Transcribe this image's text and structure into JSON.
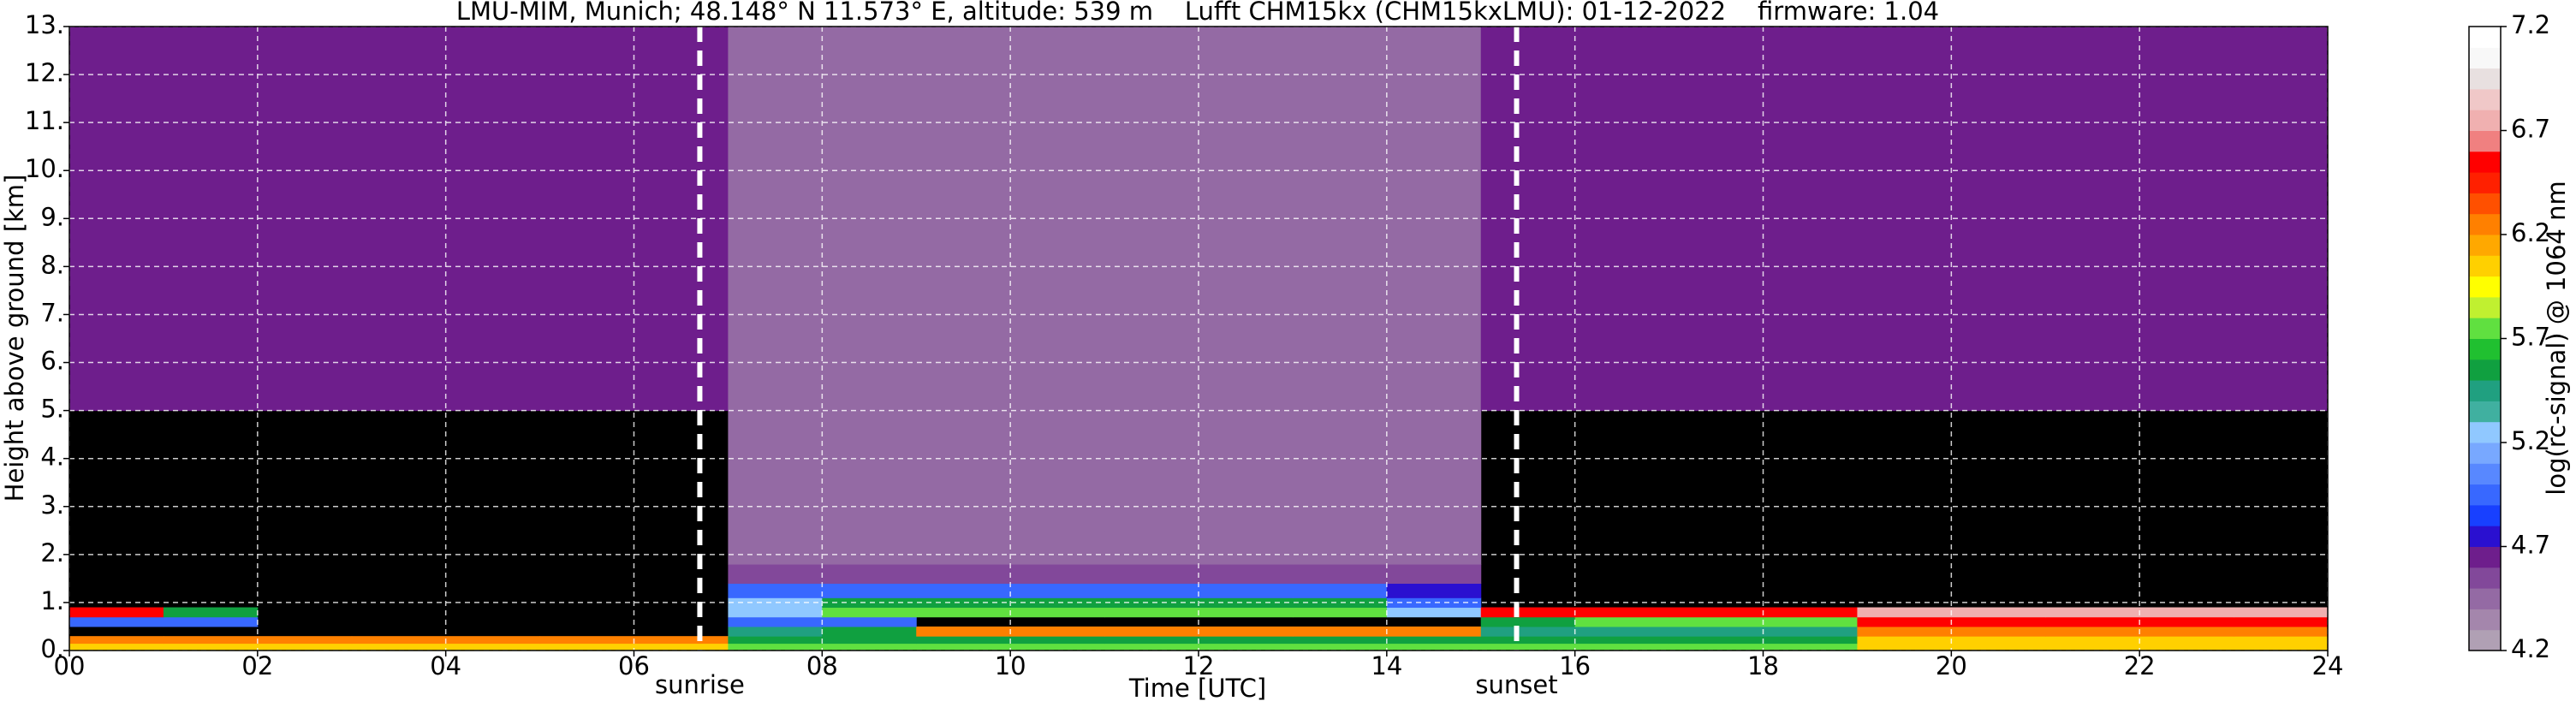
{
  "chart_data": {
    "type": "heatmap",
    "title": "LMU-MIM, Munich; 48.148° N 11.573° E, altitude: 539 m    Lufft CHM15kx (CHM15kxLMU): 01-12-2022    firmware: 1.04",
    "x_label": "Time [UTC]",
    "y_label": "Height above ground [km]",
    "xlim": [
      0,
      24
    ],
    "xticks": [
      {
        "value": 0,
        "label": "00"
      },
      {
        "value": 2,
        "label": "02"
      },
      {
        "value": 4,
        "label": "04"
      },
      {
        "value": 6,
        "label": "06"
      },
      {
        "value": 8,
        "label": "08"
      },
      {
        "value": 10,
        "label": "10"
      },
      {
        "value": 12,
        "label": "12"
      },
      {
        "value": 14,
        "label": "14"
      },
      {
        "value": 16,
        "label": "16"
      },
      {
        "value": 18,
        "label": "18"
      },
      {
        "value": 20,
        "label": "20"
      },
      {
        "value": 22,
        "label": "22"
      },
      {
        "value": 24,
        "label": "24"
      }
    ],
    "ylim": [
      0,
      13
    ],
    "yticks": [
      {
        "value": 0,
        "label": "0."
      },
      {
        "value": 1,
        "label": "1."
      },
      {
        "value": 2,
        "label": "2."
      },
      {
        "value": 3,
        "label": "3."
      },
      {
        "value": 4,
        "label": "4."
      },
      {
        "value": 5,
        "label": "5."
      },
      {
        "value": 6,
        "label": "6."
      },
      {
        "value": 7,
        "label": "7."
      },
      {
        "value": 8,
        "label": "8."
      },
      {
        "value": 9,
        "label": "9."
      },
      {
        "value": 10,
        "label": "10."
      },
      {
        "value": 11,
        "label": "11."
      },
      {
        "value": 12,
        "label": "12."
      },
      {
        "value": 13,
        "label": "13."
      }
    ],
    "grid": true,
    "annotations": [
      {
        "x": 6.7,
        "text": "sunrise"
      },
      {
        "x": 15.38,
        "text": "sunset"
      }
    ],
    "x_edges": [
      0,
      1,
      2,
      3,
      4,
      5,
      6,
      7,
      8,
      9,
      10,
      11,
      12,
      13,
      14,
      15,
      16,
      17,
      18,
      19,
      20,
      21,
      22,
      23,
      24
    ],
    "y_edges": [
      0,
      0.15,
      0.3,
      0.5,
      0.7,
      0.9,
      1.1,
      1.4,
      1.8,
      2.5,
      3,
      5,
      8,
      13
    ],
    "z": [
      [
        6.0,
        6.0,
        6.0,
        6.0,
        6.0,
        6.0,
        6.0,
        5.8,
        5.8,
        5.8,
        5.8,
        5.8,
        5.8,
        5.8,
        5.8,
        5.7,
        5.7,
        5.7,
        5.7,
        6.0,
        6.0,
        6.0,
        6.0,
        6.0
      ],
      [
        6.2,
        6.2,
        6.2,
        6.2,
        6.2,
        6.2,
        6.2,
        5.6,
        5.6,
        5.6,
        5.6,
        5.6,
        5.6,
        5.6,
        5.6,
        5.6,
        5.6,
        5.6,
        5.6,
        6.1,
        6.1,
        6.1,
        6.1,
        6.1
      ],
      [
        null,
        null,
        null,
        null,
        null,
        null,
        null,
        5.5,
        5.6,
        6.3,
        6.3,
        6.3,
        6.3,
        6.3,
        6.3,
        5.5,
        5.5,
        5.5,
        5.5,
        6.2,
        6.2,
        6.2,
        6.2,
        6.2
      ],
      [
        4.9,
        4.9,
        null,
        null,
        null,
        null,
        null,
        5.0,
        5.0,
        null,
        null,
        null,
        null,
        null,
        null,
        5.6,
        5.7,
        5.7,
        5.7,
        6.5,
        6.5,
        6.5,
        6.5,
        6.5
      ],
      [
        6.5,
        5.6,
        null,
        null,
        null,
        null,
        null,
        5.3,
        5.7,
        5.7,
        5.7,
        5.7,
        5.7,
        5.7,
        5.3,
        6.6,
        6.6,
        6.6,
        6.6,
        6.8,
        6.8,
        6.8,
        6.8,
        6.8
      ],
      [
        null,
        null,
        null,
        null,
        null,
        null,
        null,
        5.2,
        5.6,
        5.6,
        5.6,
        5.6,
        5.6,
        5.6,
        5.0,
        null,
        null,
        null,
        null,
        null,
        null,
        null,
        null,
        null
      ],
      [
        null,
        null,
        null,
        null,
        null,
        null,
        null,
        4.9,
        5.0,
        5.0,
        5.0,
        5.0,
        5.0,
        5.0,
        4.8,
        null,
        null,
        null,
        null,
        null,
        null,
        null,
        null,
        null
      ],
      [
        null,
        null,
        null,
        null,
        null,
        null,
        null,
        4.6,
        4.6,
        4.6,
        4.6,
        4.6,
        4.6,
        4.6,
        4.6,
        null,
        null,
        null,
        null,
        null,
        null,
        null,
        null,
        null
      ],
      [
        null,
        null,
        null,
        null,
        null,
        null,
        null,
        4.5,
        4.5,
        4.5,
        4.5,
        4.5,
        4.5,
        4.5,
        4.5,
        null,
        null,
        null,
        null,
        null,
        null,
        null,
        null,
        null
      ],
      [
        null,
        null,
        null,
        null,
        null,
        null,
        null,
        4.5,
        4.5,
        4.5,
        4.5,
        4.5,
        4.5,
        4.5,
        4.5,
        null,
        null,
        null,
        null,
        null,
        null,
        null,
        null,
        null
      ],
      [
        null,
        null,
        null,
        null,
        null,
        null,
        null,
        4.45,
        4.45,
        4.45,
        4.45,
        4.45,
        4.45,
        4.45,
        4.45,
        null,
        null,
        null,
        null,
        null,
        null,
        null,
        null,
        null
      ],
      [
        4.65,
        4.65,
        4.65,
        4.65,
        4.65,
        4.65,
        4.65,
        4.45,
        4.45,
        4.45,
        4.45,
        4.45,
        4.45,
        4.45,
        4.45,
        4.65,
        4.65,
        4.65,
        4.65,
        4.65,
        4.65,
        4.65,
        4.65,
        4.65
      ],
      [
        4.65,
        4.65,
        4.65,
        4.65,
        4.65,
        4.65,
        4.65,
        4.4,
        4.4,
        4.4,
        4.4,
        4.4,
        4.4,
        4.4,
        4.4,
        4.65,
        4.65,
        4.65,
        4.65,
        4.65,
        4.65,
        4.65,
        4.65,
        4.65
      ]
    ],
    "colorbar": {
      "label": "log(rc-signal) @ 1064 nm",
      "clim": [
        4.2,
        7.2
      ],
      "ticks": [
        4.2,
        4.7,
        5.2,
        5.7,
        6.2,
        6.7,
        7.2
      ],
      "colors": [
        "#b0a0b4",
        "#a486ac",
        "#946aa4",
        "#82489a",
        "#6e1e8c",
        "#2a10d0",
        "#1840ff",
        "#3868ff",
        "#5888ff",
        "#78a8ff",
        "#90c8ff",
        "#40b0a0",
        "#20a080",
        "#10a040",
        "#20c030",
        "#60e040",
        "#c0f030",
        "#ffff00",
        "#ffd000",
        "#ffa800",
        "#ff8000",
        "#ff5000",
        "#ff2000",
        "#ff0000",
        "#f08080",
        "#f0b0b0",
        "#f0c8c8",
        "#e8e0e0",
        "#f8f8f8",
        "#ffffff"
      ]
    }
  }
}
